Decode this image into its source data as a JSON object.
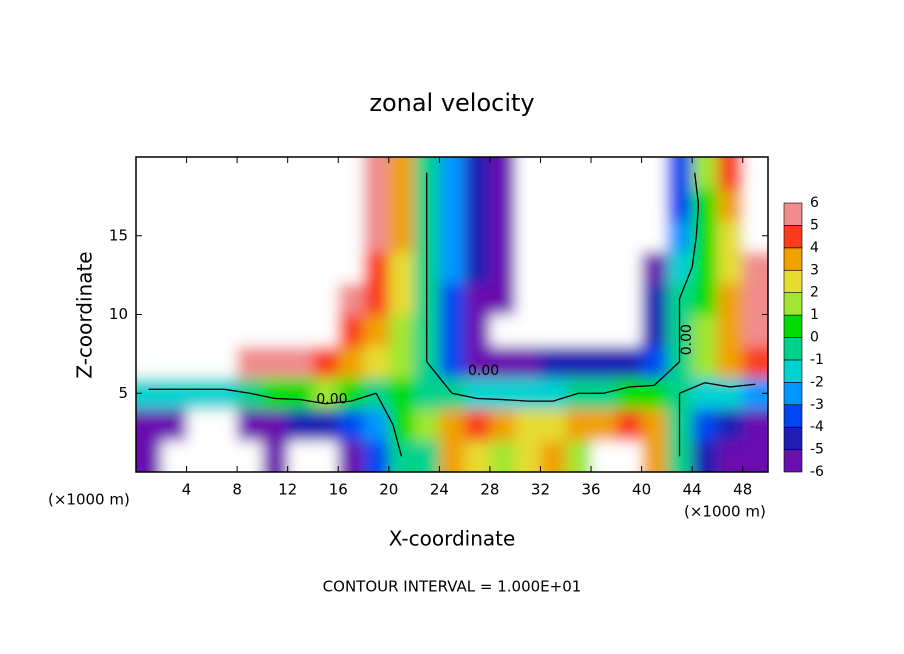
{
  "chart_data": {
    "type": "contourf",
    "title": "zonal velocity",
    "x_label": "X-coordinate",
    "y_label": "Z-coordinate",
    "x_unit": "(×1000 m)",
    "x_unit_right": "(×1000 m)",
    "footer": "CONTOUR INTERVAL = 1.000E+01",
    "xlim": [
      0,
      50
    ],
    "xticks": [
      4,
      8,
      12,
      16,
      20,
      24,
      28,
      32,
      36,
      40,
      44,
      48
    ],
    "ylim": [
      0,
      20
    ],
    "yticks": [
      5,
      10,
      15
    ],
    "x": [
      1,
      3,
      5,
      7,
      9,
      11,
      13,
      15,
      17,
      19,
      21,
      23,
      25,
      27,
      29,
      31,
      33,
      35,
      37,
      39,
      41,
      43,
      45,
      47,
      49
    ],
    "y": [
      1,
      3,
      5,
      7,
      9,
      11,
      13,
      15,
      17,
      19
    ],
    "z": [
      [
        -6,
        -8,
        -8,
        -8,
        -7,
        -6,
        -8,
        -8,
        -6,
        -3,
        0,
        0,
        4,
        3,
        2,
        3,
        4,
        2,
        8,
        8,
        4,
        0,
        -4,
        -5,
        -6
      ],
      [
        -5,
        -5,
        -8,
        -8,
        -6,
        -5,
        -4,
        -4,
        -3,
        -2,
        1,
        2,
        4,
        5,
        4,
        3,
        3,
        4,
        4,
        5,
        4,
        0,
        -3,
        -4,
        -5
      ],
      [
        -1,
        -1,
        -1,
        -1,
        0,
        1,
        1,
        2,
        1,
        0,
        1,
        0,
        0,
        -1,
        -1,
        -1,
        -1,
        0,
        0,
        1,
        1,
        0,
        -1,
        -1,
        -2
      ],
      [
        7,
        7,
        7,
        7,
        6,
        6,
        6,
        5,
        4,
        3,
        2,
        0,
        -3,
        -5,
        -5,
        -5,
        -4,
        -4,
        -4,
        -4,
        -3,
        0,
        2,
        4,
        5
      ],
      [
        8,
        8,
        8,
        8,
        8,
        8,
        8,
        7,
        5,
        4,
        2,
        0,
        -3,
        -6,
        -7,
        -8,
        -8,
        -8,
        -8,
        -7,
        -4,
        0,
        2,
        4,
        6
      ],
      [
        8,
        8,
        8,
        8,
        8,
        8,
        8,
        8,
        6,
        5,
        3,
        0,
        -3,
        -5,
        -6,
        -8,
        -8,
        -8,
        -8,
        -8,
        -4,
        0,
        1,
        4,
        6
      ],
      [
        8,
        8,
        8,
        8,
        8,
        8,
        8,
        8,
        7,
        5,
        3,
        0,
        -2,
        -4,
        -6,
        -8,
        -8,
        -8,
        -8,
        -8,
        -5,
        -1,
        1,
        3,
        6
      ],
      [
        8,
        8,
        8,
        8,
        8,
        8,
        8,
        8,
        8,
        6,
        4,
        0,
        -2,
        -4,
        -6,
        -8,
        -8,
        -8,
        -8,
        -8,
        -8,
        -2,
        1,
        3,
        7
      ],
      [
        8,
        8,
        8,
        8,
        8,
        8,
        8,
        8,
        8,
        6,
        4,
        0,
        -2,
        -4,
        -5,
        -8,
        -8,
        -8,
        -8,
        -8,
        -8,
        -3,
        1,
        4,
        8
      ],
      [
        8,
        8,
        8,
        8,
        8,
        8,
        8,
        8,
        8,
        6,
        4,
        0,
        -2,
        -4,
        -5,
        -8,
        -8,
        -8,
        -8,
        -8,
        -8,
        -3,
        2,
        5,
        8
      ]
    ],
    "levels": [
      -6,
      -5,
      -4,
      -3,
      -2,
      -1,
      0,
      1,
      2,
      3,
      4,
      5,
      6
    ],
    "colors": [
      "#6a10b0",
      "#1e1eb4",
      "#0046f0",
      "#0096ff",
      "#00d2d2",
      "#00d28c",
      "#00dc00",
      "#a0e632",
      "#e6dc32",
      "#f0a000",
      "#fa3c1e",
      "#f08c8c"
    ],
    "contour_levels": [
      0
    ],
    "contour_labels": [
      "0.00",
      "0.00",
      "0.00"
    ]
  }
}
